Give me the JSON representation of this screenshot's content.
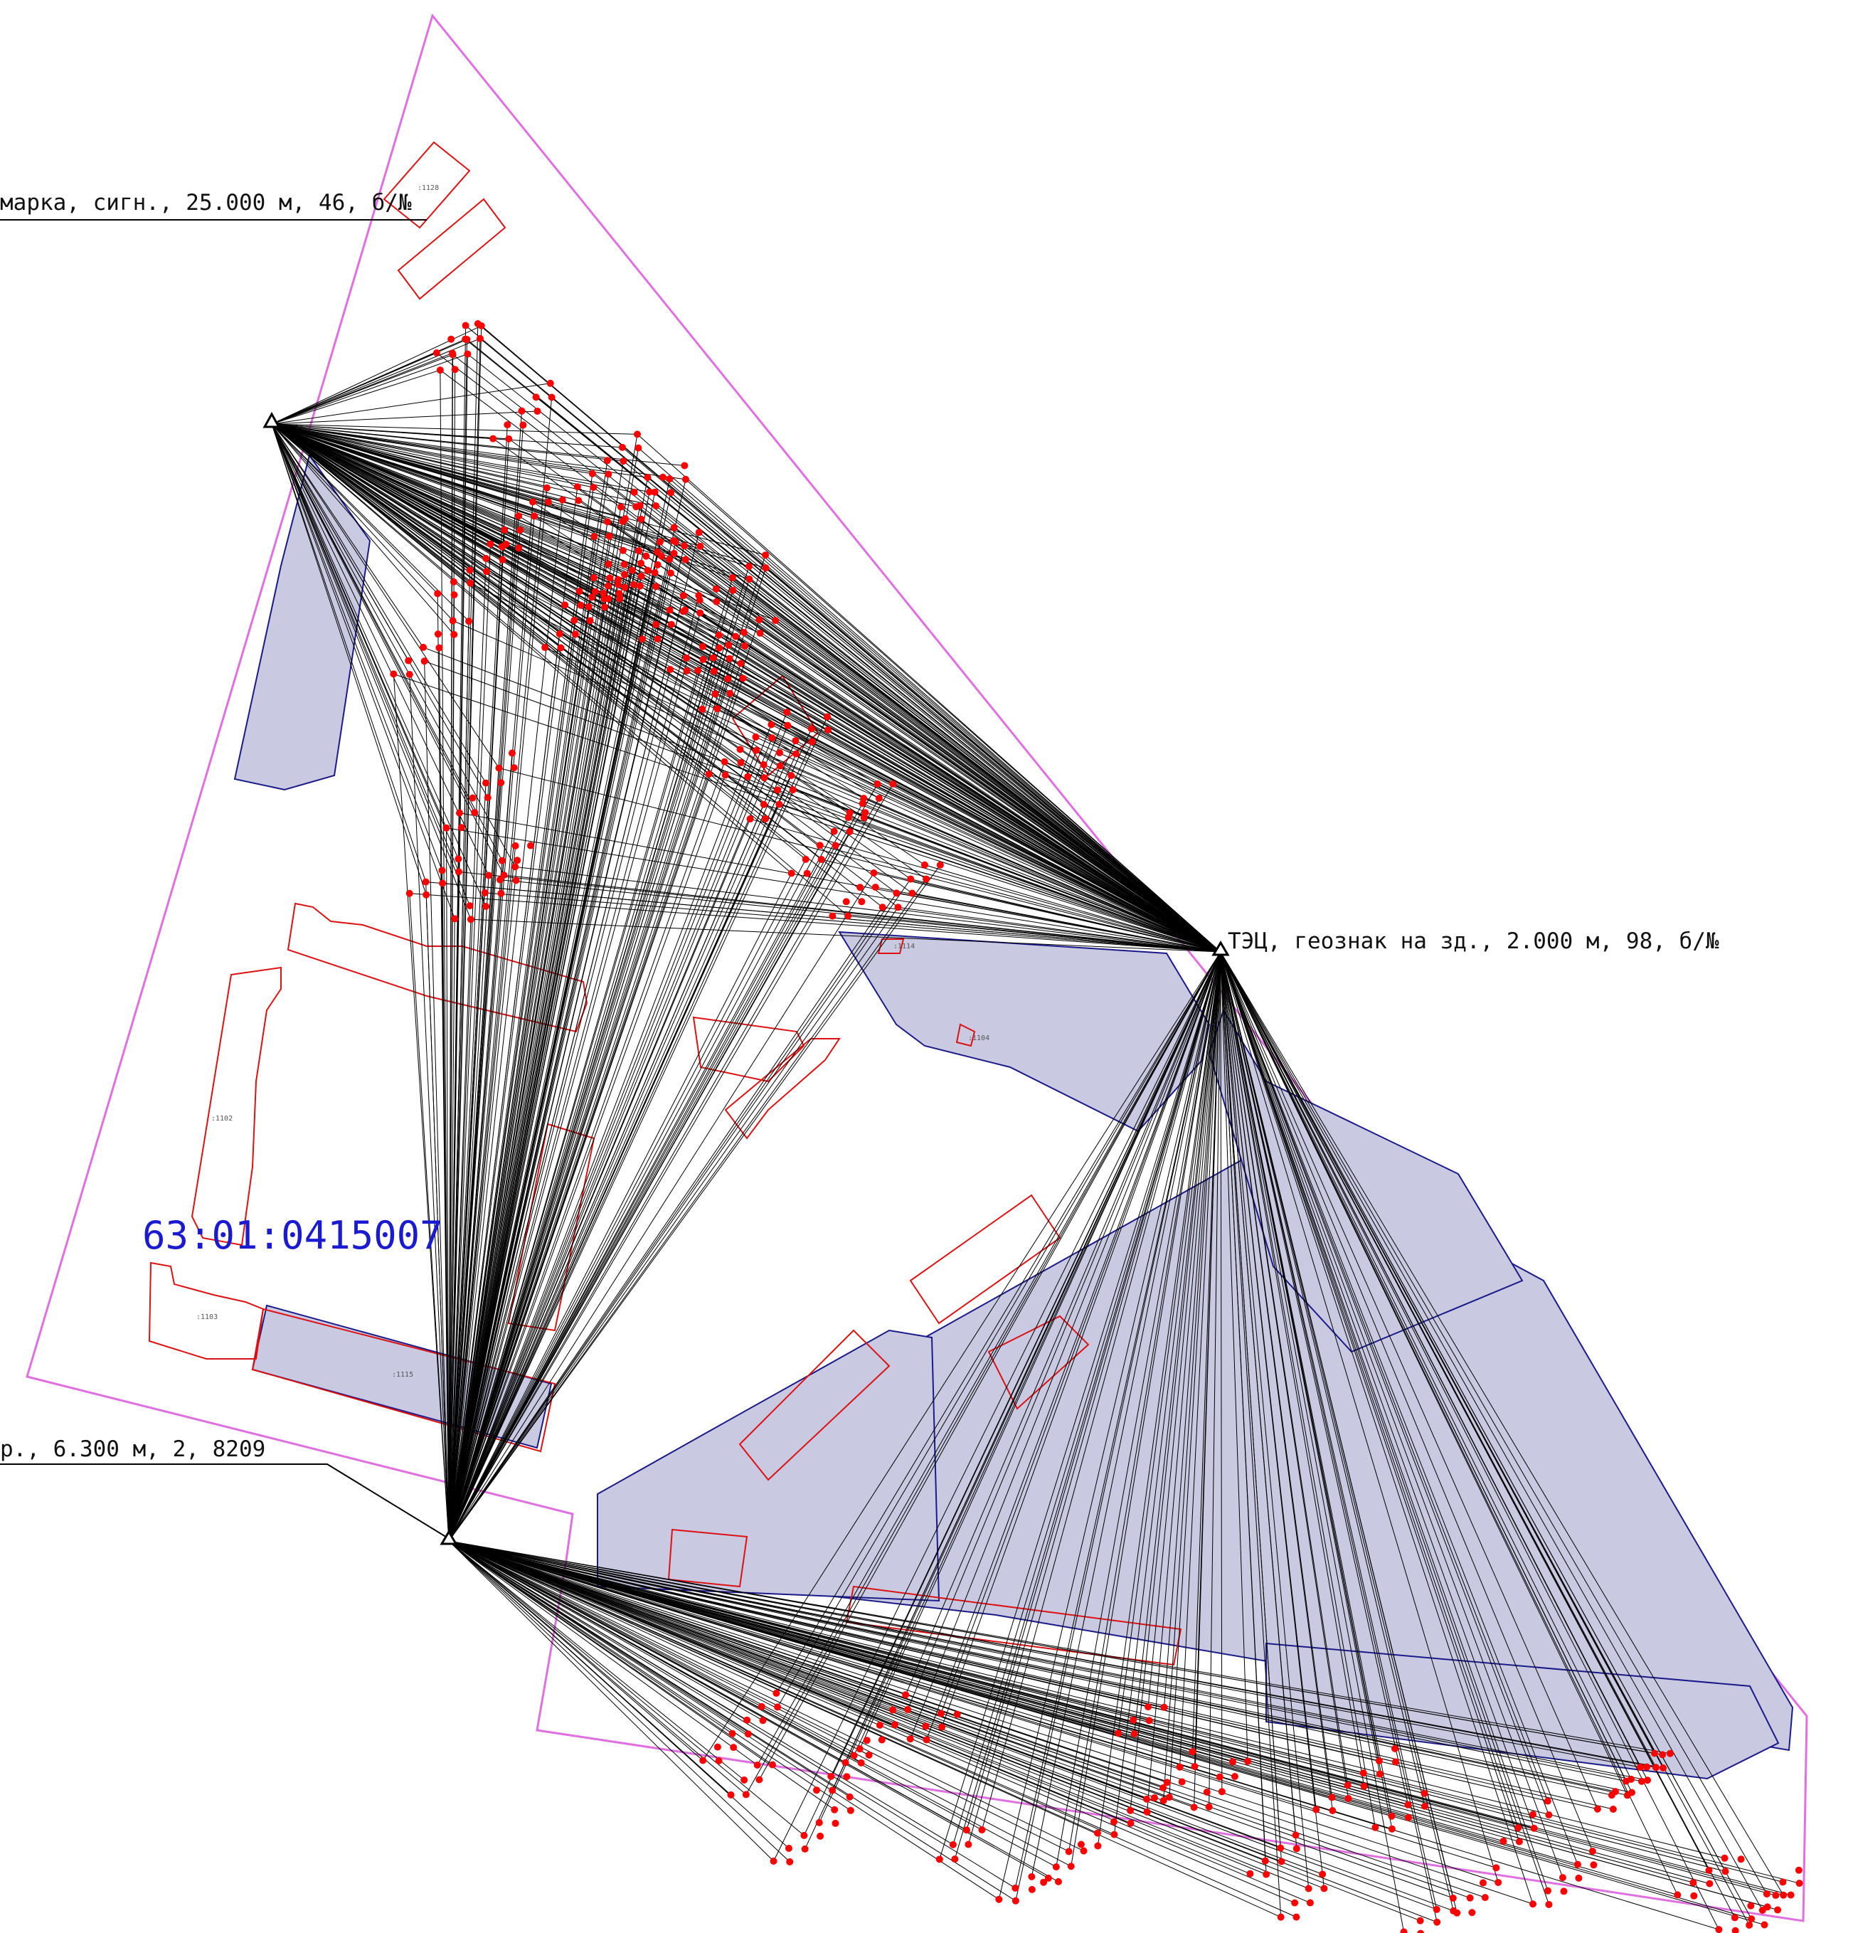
{
  "stations": [
    {
      "id": "st-nw",
      "label": "марка, сигн., 25.000 м, 46, б/№"
    },
    {
      "id": "st-e",
      "label": "ТЭЦ, геознак на зд., 2.000 м, 98, б/№"
    },
    {
      "id": "st-sw",
      "label": "р., 6.300 м, 2, 8209"
    }
  ],
  "quarter_number": "63:01:0415007",
  "parcel_labels": [
    ":1128",
    ":1102",
    ":1103",
    ":1114",
    ":1104",
    ":1115"
  ],
  "colors": {
    "boundary": "#e070e0",
    "parcel": "#dd1111",
    "building_fill": "#c9c9e2",
    "building_stroke": "#1a1a88",
    "rays": "#000000",
    "points": "#ff0000",
    "quarter_text": "#1a1ad0"
  }
}
